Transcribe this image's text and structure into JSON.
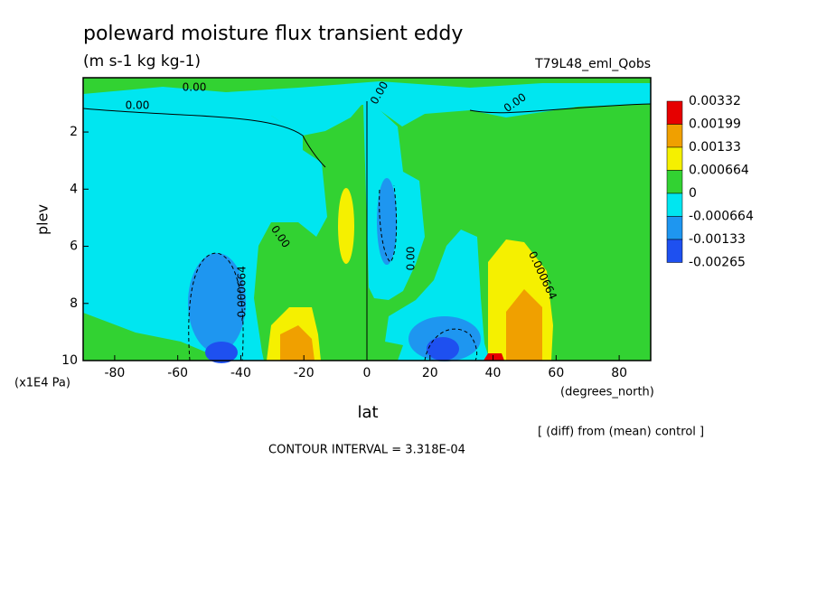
{
  "chart_data": {
    "type": "contour",
    "title": "poleward moisture flux transient eddy",
    "subtitle": "(m s-1 kg kg-1)",
    "run_label": "T79L48_eml_Qobs",
    "ylabel": "plev",
    "yunit": "(x1E4 Pa)",
    "xlabel": "lat",
    "xunit": "(degrees_north)",
    "note": "[ (diff) from (mean) control ]",
    "contour_interval": "CONTOUR INTERVAL = 3.318E-04",
    "xlim": [
      -90,
      90
    ],
    "xticks": [
      -80,
      -60,
      -40,
      -20,
      0,
      20,
      40,
      60,
      80
    ],
    "ylim": [
      10,
      0.1
    ],
    "yticks": [
      2,
      4,
      6,
      8,
      10
    ],
    "colorbar": {
      "levels": [
        0.00332,
        0.00199,
        0.00133,
        0.000664,
        0,
        -0.000664,
        -0.00133,
        -0.00265
      ],
      "colors": [
        "#e60000",
        "#f0a000",
        "#f5f000",
        "#32d232",
        "#00e6f0",
        "#1e96f0",
        "#1e50f0"
      ]
    },
    "contour_labels": [
      "0.00",
      "0.00",
      "0.00",
      "0.00",
      "0.00",
      "0.00",
      "-0.000664",
      "0.000664"
    ]
  }
}
